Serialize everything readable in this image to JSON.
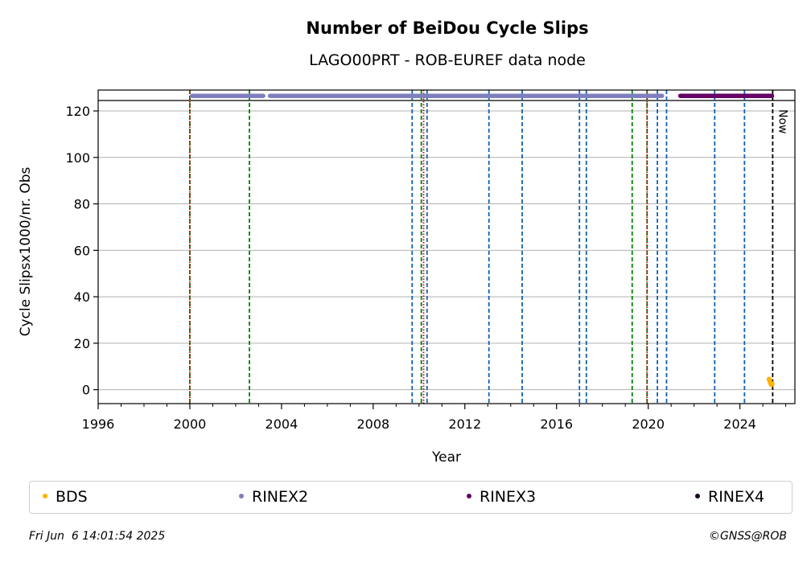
{
  "chart_data": {
    "type": "scatter",
    "title": "Number of BeiDou Cycle Slips",
    "subtitle": "LAGO00PRT - ROB-EUREF data node",
    "xlabel": "Year",
    "ylabel": "Cycle Slipsx1000/nr. Obs",
    "xlim": [
      1996.0,
      2026.4
    ],
    "ylim": [
      -6,
      129
    ],
    "x_ticks": [
      1996,
      2000,
      2004,
      2008,
      2012,
      2016,
      2020,
      2024
    ],
    "x_tick_labels": [
      "1996",
      "2000",
      "2004",
      "2008",
      "2012",
      "2016",
      "2020",
      "2024"
    ],
    "y_ticks": [
      0,
      20,
      40,
      60,
      80,
      100,
      120
    ],
    "y_tick_labels": [
      "0",
      "20",
      "40",
      "60",
      "80",
      "100",
      "120"
    ],
    "grid": "horizontal",
    "top_line_y": 124.5,
    "series": [
      {
        "name": "BDS",
        "color": "#ffb300",
        "points": [
          [
            2025.28,
            4.5
          ],
          [
            2025.31,
            3.5
          ],
          [
            2025.34,
            2.8
          ],
          [
            2025.37,
            2.2
          ],
          [
            2025.4,
            2.5
          ]
        ]
      },
      {
        "name": "RINEX2",
        "color": "#7f7fbf",
        "segments": [
          [
            2000.1,
            2003.2
          ],
          [
            2003.5,
            2020.6
          ]
        ],
        "y": 126.5
      },
      {
        "name": "RINEX3",
        "color": "#660066",
        "segments": [
          [
            2021.4,
            2025.4
          ]
        ],
        "y": 126.5
      },
      {
        "name": "RINEX4",
        "color": "#1a0026",
        "segments": []
      }
    ],
    "vlines": [
      {
        "x": 2000.0,
        "color": "#008000"
      },
      {
        "x": 2000.0,
        "color": "#cc0000",
        "style": "dotted"
      },
      {
        "x": 2002.6,
        "color": "#008000"
      },
      {
        "x": 2009.7,
        "color": "#1060b0"
      },
      {
        "x": 2010.1,
        "color": "#008000"
      },
      {
        "x": 2010.2,
        "color": "#cc0000",
        "style": "dotted"
      },
      {
        "x": 2010.35,
        "color": "#1060b0"
      },
      {
        "x": 2013.05,
        "color": "#1060b0"
      },
      {
        "x": 2014.5,
        "color": "#1060b0"
      },
      {
        "x": 2017.0,
        "color": "#1060b0"
      },
      {
        "x": 2017.3,
        "color": "#1060b0"
      },
      {
        "x": 2019.3,
        "color": "#008000"
      },
      {
        "x": 2019.95,
        "color": "#008000"
      },
      {
        "x": 2019.95,
        "color": "#cc0000",
        "style": "dotted"
      },
      {
        "x": 2020.4,
        "color": "#1060b0"
      },
      {
        "x": 2020.8,
        "color": "#1060b0"
      },
      {
        "x": 2022.9,
        "color": "#1060b0"
      },
      {
        "x": 2024.2,
        "color": "#1060b0"
      },
      {
        "x": 2025.43,
        "color": "#000000",
        "label": "Now"
      }
    ]
  },
  "legend": [
    {
      "label": "BDS",
      "color": "#ffb300"
    },
    {
      "label": "RINEX2",
      "color": "#7f7fbf"
    },
    {
      "label": "RINEX3",
      "color": "#660066"
    },
    {
      "label": "RINEX4",
      "color": "#1a0026"
    }
  ],
  "footer": {
    "timestamp": "Fri Jun  6 14:01:54 2025",
    "copyright": "©GNSS@ROB"
  }
}
